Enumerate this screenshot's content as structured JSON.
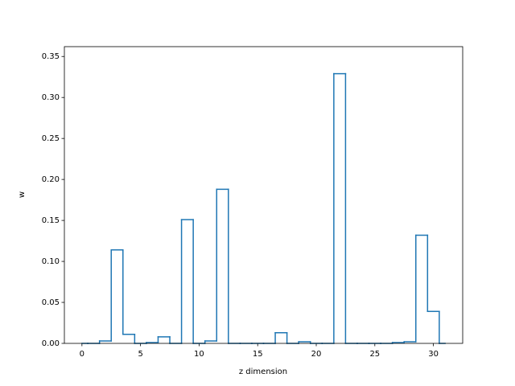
{
  "chart_data": {
    "type": "line",
    "drawstyle": "steps-mid",
    "x": [
      0,
      1,
      2,
      3,
      4,
      5,
      6,
      7,
      8,
      9,
      10,
      11,
      12,
      13,
      14,
      15,
      16,
      17,
      18,
      19,
      20,
      21,
      22,
      23,
      24,
      25,
      26,
      27,
      28,
      29,
      30,
      31
    ],
    "series": [
      {
        "color": "#1f77b4",
        "values": [
          0,
          0,
          0.003,
          0.114,
          0.011,
          0,
          0.001,
          0.008,
          0,
          0.151,
          0,
          0.003,
          0.188,
          0,
          0,
          0,
          0,
          0.013,
          0,
          0.002,
          0,
          0,
          0.329,
          0,
          0,
          0,
          0,
          0.001,
          0.002,
          0.132,
          0.039,
          0
        ]
      }
    ],
    "xlabel": "z dimension",
    "ylabel": "w",
    "xlim": [
      -1.5,
      32.5
    ],
    "ylim": [
      0,
      0.362
    ],
    "xticks": [
      0,
      5,
      10,
      15,
      20,
      25,
      30
    ],
    "yticks": [
      {
        "value": 0,
        "label": "0.00"
      },
      {
        "value": 0.05,
        "label": "0.05"
      },
      {
        "value": 0.1,
        "label": "0.10"
      },
      {
        "value": 0.15,
        "label": "0.15"
      },
      {
        "value": 0.2,
        "label": "0.20"
      },
      {
        "value": 0.25,
        "label": "0.25"
      },
      {
        "value": 0.3,
        "label": "0.30"
      },
      {
        "value": 0.35,
        "label": "0.35"
      }
    ]
  }
}
